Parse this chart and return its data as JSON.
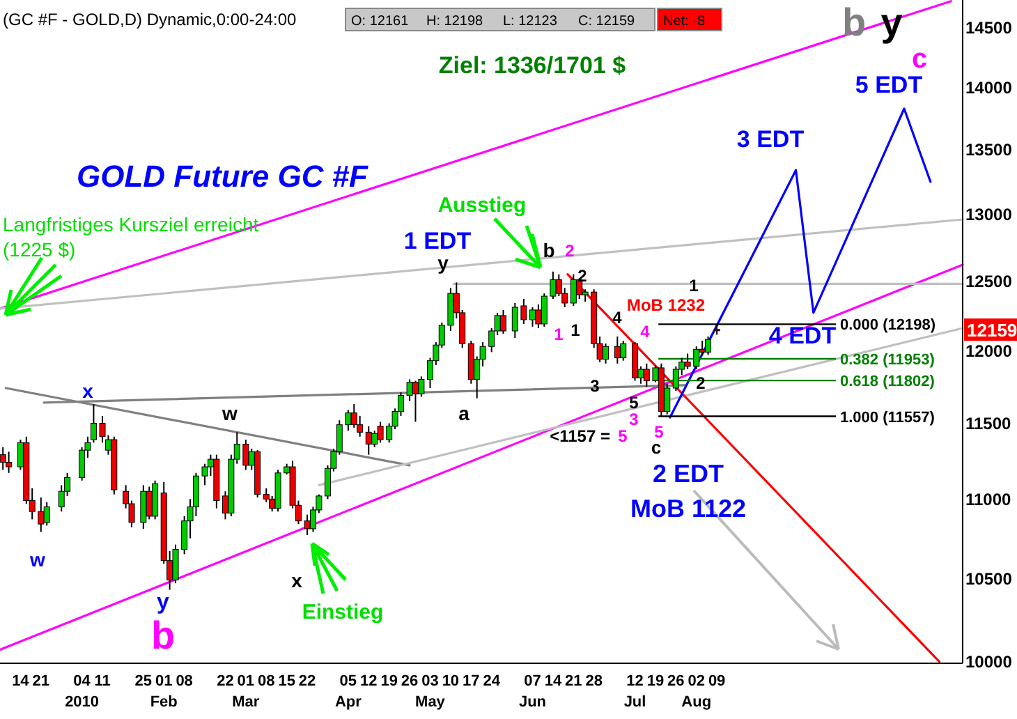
{
  "chart_data": {
    "type": "candlestick",
    "title": "(GC #F - GOLD,D) Dynamic,0:00-24:00",
    "log": true,
    "xlim": [
      "2009-12-07",
      "2010-11-01"
    ],
    "ylim": [
      10000,
      14750
    ],
    "yticks": [
      10000,
      10500,
      11000,
      11500,
      12000,
      12500,
      13000,
      13500,
      14000,
      14500
    ],
    "xticks": [
      {
        "value": "2009-12-14",
        "label": "14"
      },
      {
        "value": "2009-12-21",
        "label": "21"
      },
      {
        "value": "2010-01-04",
        "label": "04\n2010"
      },
      {
        "value": "2010-01-11",
        "label": "11"
      },
      {
        "value": "2010-01-25",
        "label": "25"
      },
      {
        "value": "2010-02-01",
        "label": "01\nFeb"
      },
      {
        "value": "2010-02-08",
        "label": "08"
      },
      {
        "value": "2010-02-22",
        "label": "22"
      },
      {
        "value": "2010-03-01",
        "label": "01\nMar"
      },
      {
        "value": "2010-03-08",
        "label": "08"
      },
      {
        "value": "2010-03-15",
        "label": "15"
      },
      {
        "value": "2010-03-22",
        "label": "22"
      },
      {
        "value": "2010-04-05",
        "label": "05\nApr"
      },
      {
        "value": "2010-04-12",
        "label": "12"
      },
      {
        "value": "2010-04-19",
        "label": "19"
      },
      {
        "value": "2010-04-26",
        "label": "26"
      },
      {
        "value": "2010-05-03",
        "label": "03\nMay"
      },
      {
        "value": "2010-05-10",
        "label": "10"
      },
      {
        "value": "2010-05-17",
        "label": "17"
      },
      {
        "value": "2010-05-24",
        "label": "24"
      },
      {
        "value": "2010-06-07",
        "label": "07\nJun"
      },
      {
        "value": "2010-06-14",
        "label": "14"
      },
      {
        "value": "2010-06-21",
        "label": "21"
      },
      {
        "value": "2010-06-28",
        "label": "28"
      },
      {
        "value": "2010-07-12",
        "label": "12\nJul"
      },
      {
        "value": "2010-07-19",
        "label": "19"
      },
      {
        "value": "2010-07-26",
        "label": "26"
      },
      {
        "value": "2010-08-02",
        "label": "02\nAug"
      },
      {
        "value": "2010-08-09",
        "label": "09"
      }
    ],
    "x": [
      "2009-12-08",
      "2009-12-10",
      "2009-12-14",
      "2009-12-16",
      "2009-12-18",
      "2009-12-21",
      "2009-12-23",
      "2009-12-28",
      "2009-12-30",
      "2010-01-04",
      "2010-01-06",
      "2010-01-08",
      "2010-01-11",
      "2010-01-13",
      "2010-01-15",
      "2010-01-19",
      "2010-01-21",
      "2010-01-25",
      "2010-01-27",
      "2010-01-29",
      "2010-02-01",
      "2010-02-03",
      "2010-02-05",
      "2010-02-08",
      "2010-02-10",
      "2010-02-12",
      "2010-02-15",
      "2010-02-17",
      "2010-02-19",
      "2010-02-22",
      "2010-02-24",
      "2010-02-26",
      "2010-03-01",
      "2010-03-03",
      "2010-03-05",
      "2010-03-08",
      "2010-03-10",
      "2010-03-12",
      "2010-03-15",
      "2010-03-17",
      "2010-03-19",
      "2010-03-22",
      "2010-03-24",
      "2010-03-26",
      "2010-03-29",
      "2010-03-31",
      "2010-04-02",
      "2010-04-05",
      "2010-04-07",
      "2010-04-09",
      "2010-04-12",
      "2010-04-14",
      "2010-04-16",
      "2010-04-19",
      "2010-04-21",
      "2010-04-23",
      "2010-04-26",
      "2010-04-28",
      "2010-04-30",
      "2010-05-03",
      "2010-05-05",
      "2010-05-07",
      "2010-05-10",
      "2010-05-12",
      "2010-05-14",
      "2010-05-17",
      "2010-05-19",
      "2010-05-21",
      "2010-05-24",
      "2010-05-26",
      "2010-05-28",
      "2010-06-01",
      "2010-06-04",
      "2010-06-07",
      "2010-06-09",
      "2010-06-11",
      "2010-06-14",
      "2010-06-16",
      "2010-06-18",
      "2010-06-21",
      "2010-06-23",
      "2010-06-25",
      "2010-06-28",
      "2010-06-30",
      "2010-07-02",
      "2010-07-06",
      "2010-07-08",
      "2010-07-12",
      "2010-07-14",
      "2010-07-16",
      "2010-07-19",
      "2010-07-21",
      "2010-07-23",
      "2010-07-26",
      "2010-07-28",
      "2010-07-30",
      "2010-08-02",
      "2010-08-04",
      "2010-08-06",
      "2010-08-09"
    ],
    "ohlc": [
      [
        11300,
        11350,
        11200,
        11250
      ],
      [
        11250,
        11320,
        11180,
        11220
      ],
      [
        11220,
        11400,
        11200,
        11380
      ],
      [
        11380,
        11420,
        10980,
        11000
      ],
      [
        11000,
        11080,
        10880,
        10930
      ],
      [
        10930,
        11020,
        10800,
        10850
      ],
      [
        10860,
        10990,
        10840,
        10960
      ],
      [
        10960,
        11100,
        10930,
        11060
      ],
      [
        11060,
        11180,
        11030,
        11150
      ],
      [
        11150,
        11350,
        11130,
        11330
      ],
      [
        11330,
        11420,
        11280,
        11380
      ],
      [
        11400,
        11640,
        11380,
        11510
      ],
      [
        11510,
        11560,
        11380,
        11420
      ],
      [
        11330,
        11430,
        11300,
        11400
      ],
      [
        11400,
        11420,
        11040,
        11070
      ],
      [
        11060,
        11100,
        10950,
        10980
      ],
      [
        10980,
        11000,
        10830,
        10860
      ],
      [
        10860,
        11100,
        10820,
        11060
      ],
      [
        11060,
        11090,
        10880,
        10900
      ],
      [
        10900,
        11130,
        10880,
        11110
      ],
      [
        11050,
        11120,
        10600,
        10620
      ],
      [
        10620,
        10680,
        10440,
        10500
      ],
      [
        10500,
        10720,
        10480,
        10690
      ],
      [
        10690,
        10900,
        10660,
        10870
      ],
      [
        10870,
        11010,
        10760,
        10960
      ],
      [
        10960,
        11180,
        10900,
        11160
      ],
      [
        11160,
        11240,
        11100,
        11220
      ],
      [
        11220,
        11300,
        11160,
        11270
      ],
      [
        11270,
        11300,
        10950,
        11000
      ],
      [
        11030,
        11060,
        10880,
        10920
      ],
      [
        10920,
        11300,
        10900,
        11270
      ],
      [
        11270,
        11450,
        11240,
        11370
      ],
      [
        11370,
        11400,
        11200,
        11230
      ],
      [
        11230,
        11340,
        11200,
        11320
      ],
      [
        11320,
        11330,
        11020,
        11040
      ],
      [
        11040,
        11080,
        10990,
        11010
      ],
      [
        11010,
        11030,
        10930,
        10950
      ],
      [
        10950,
        11200,
        10930,
        11180
      ],
      [
        11180,
        11240,
        11170,
        11220
      ],
      [
        11220,
        11260,
        10950,
        10970
      ],
      [
        10970,
        11000,
        10850,
        10870
      ],
      [
        10870,
        10910,
        10780,
        10820
      ],
      [
        10820,
        10960,
        10800,
        10940
      ],
      [
        10940,
        11040,
        10920,
        11030
      ],
      [
        11030,
        11230,
        11010,
        11210
      ],
      [
        11210,
        11340,
        11190,
        11320
      ],
      [
        11320,
        11530,
        11300,
        11500
      ],
      [
        11500,
        11600,
        11460,
        11580
      ],
      [
        11580,
        11640,
        11480,
        11500
      ],
      [
        11500,
        11560,
        11420,
        11450
      ],
      [
        11450,
        11490,
        11300,
        11370
      ],
      [
        11370,
        11460,
        11350,
        11440
      ],
      [
        11490,
        11520,
        11380,
        11400
      ],
      [
        11400,
        11510,
        11380,
        11490
      ],
      [
        11490,
        11610,
        11470,
        11590
      ],
      [
        11590,
        11720,
        11560,
        11700
      ],
      [
        11700,
        11810,
        11660,
        11790
      ],
      [
        11790,
        11800,
        11520,
        11710
      ],
      [
        11710,
        11830,
        11690,
        11810
      ],
      [
        11810,
        11960,
        11750,
        11940
      ],
      [
        11940,
        12070,
        11910,
        12050
      ],
      [
        12050,
        12210,
        12030,
        12190
      ],
      [
        12190,
        12460,
        12150,
        12420
      ],
      [
        12420,
        12500,
        12240,
        12280
      ],
      [
        12280,
        12300,
        12030,
        12060
      ],
      [
        12060,
        12080,
        11780,
        11810
      ],
      [
        11810,
        11970,
        11680,
        11950
      ],
      [
        11950,
        12070,
        11900,
        12040
      ],
      [
        12040,
        12170,
        12000,
        12150
      ],
      [
        12150,
        12280,
        12120,
        12260
      ],
      [
        12260,
        12300,
        12130,
        12150
      ],
      [
        12150,
        12350,
        12100,
        12320
      ],
      [
        12330,
        12380,
        12200,
        12230
      ],
      [
        12230,
        12320,
        12180,
        12300
      ],
      [
        12300,
        12340,
        12170,
        12200
      ],
      [
        12200,
        12420,
        12180,
        12400
      ],
      [
        12400,
        12580,
        12380,
        12520
      ],
      [
        12520,
        12560,
        12400,
        12420
      ],
      [
        12420,
        12460,
        12320,
        12350
      ],
      [
        12350,
        12560,
        12330,
        12520
      ],
      [
        12520,
        12530,
        12380,
        12410
      ],
      [
        12410,
        12450,
        12360,
        12430
      ],
      [
        12430,
        12450,
        12030,
        12060
      ],
      [
        12060,
        12110,
        11930,
        11950
      ],
      [
        11950,
        12060,
        11920,
        12040
      ],
      [
        12040,
        12110,
        11920,
        11960
      ],
      [
        11960,
        12080,
        11940,
        12060
      ],
      [
        12060,
        12070,
        11800,
        11820
      ],
      [
        11820,
        11900,
        11780,
        11880
      ],
      [
        11880,
        11920,
        11760,
        11800
      ],
      [
        11800,
        11910,
        11790,
        11890
      ],
      [
        11890,
        11920,
        11560,
        11590
      ],
      [
        11590,
        11780,
        11570,
        11750
      ],
      [
        11750,
        11900,
        11730,
        11880
      ],
      [
        11880,
        11960,
        11840,
        11930
      ],
      [
        11930,
        11990,
        11880,
        11900
      ],
      [
        11900,
        12040,
        11880,
        12020
      ],
      [
        12020,
        12080,
        11980,
        12000
      ],
      [
        12000,
        12110,
        11980,
        12090
      ],
      [
        12161,
        12198,
        12123,
        12159
      ]
    ],
    "series": [
      {
        "type": "line",
        "color": "#ff00ff",
        "x": [
          "2009-12-07",
          "2010-11-01"
        ],
        "values": [
          10080,
          12630
        ]
      },
      {
        "type": "line",
        "color": "#ff00ff",
        "x": [
          "2009-12-07",
          "2010-10-28"
        ],
        "values": [
          12310,
          14740
        ]
      },
      {
        "type": "line",
        "color": "#808080",
        "x": [
          "2009-12-22",
          "2010-07-29"
        ],
        "values": [
          11650,
          11770
        ]
      },
      {
        "type": "line",
        "color": "#808080",
        "x": [
          "2009-12-09",
          "2010-04-26"
        ],
        "values": [
          11750,
          11230
        ]
      },
      {
        "type": "line",
        "color": "#c0c0c0",
        "x": [
          "2009-12-07",
          "2010-11-01"
        ],
        "values": [
          12310,
          12970
        ]
      },
      {
        "type": "line",
        "color": "#c0c0c0",
        "x": [
          "2010-03-26",
          "2010-11-01"
        ],
        "values": [
          11100,
          12170
        ]
      },
      {
        "type": "line",
        "color": "#c0c0c0",
        "x": [
          "2010-05-11",
          "2010-11-01"
        ],
        "values": [
          12490,
          12490
        ]
      },
      {
        "type": "line",
        "color": "#ff0000",
        "x": [
          "2010-06-19",
          "2010-10-24"
        ],
        "values": [
          12560,
          10010
        ]
      },
      {
        "type": "line",
        "color": "#0000ff",
        "x": [
          "2010-07-24",
          "2010-09-05",
          "2010-09-11",
          "2010-10-12",
          "2010-10-21"
        ],
        "values": [
          11550,
          13350,
          12280,
          13840,
          13260
        ]
      }
    ],
    "ref_lines": [
      {
        "axis": "y",
        "value": 12198,
        "label": "0.000 (12198)",
        "color": "#000000"
      },
      {
        "axis": "y",
        "value": 11953,
        "label": "0.382 (11953)",
        "color": "#008000"
      },
      {
        "axis": "y",
        "value": 11802,
        "label": "0.618 (11802)",
        "color": "#008000"
      },
      {
        "axis": "y",
        "value": 11557,
        "label": "1.000 (11557)",
        "color": "#000000"
      }
    ],
    "annotations": [
      "O: 12161",
      "H: 12198",
      "L: 12123",
      "C: 12159",
      "Net: -8",
      "Ziel: 1336/1701 $",
      "GOLD Future GC #F",
      "Langfristiges Kursziel erreicht",
      "(1225 $)",
      "x",
      "w",
      "y",
      "b",
      "w",
      "x",
      "Einstieg",
      "a",
      "y",
      "1 EDT",
      "Ausstieg",
      "b",
      "2",
      "2",
      "1",
      "1",
      "4",
      "4",
      "3",
      "5",
      "3",
      "5",
      "c",
      "<1157 =",
      "5",
      "MoB 1232",
      "1",
      "2",
      "2 EDT",
      "MoB 1122",
      "3 EDT",
      "4 EDT",
      "5 EDT",
      "c",
      "b",
      "y",
      {
        "text": "12159",
        "y": 12159
      }
    ]
  }
}
